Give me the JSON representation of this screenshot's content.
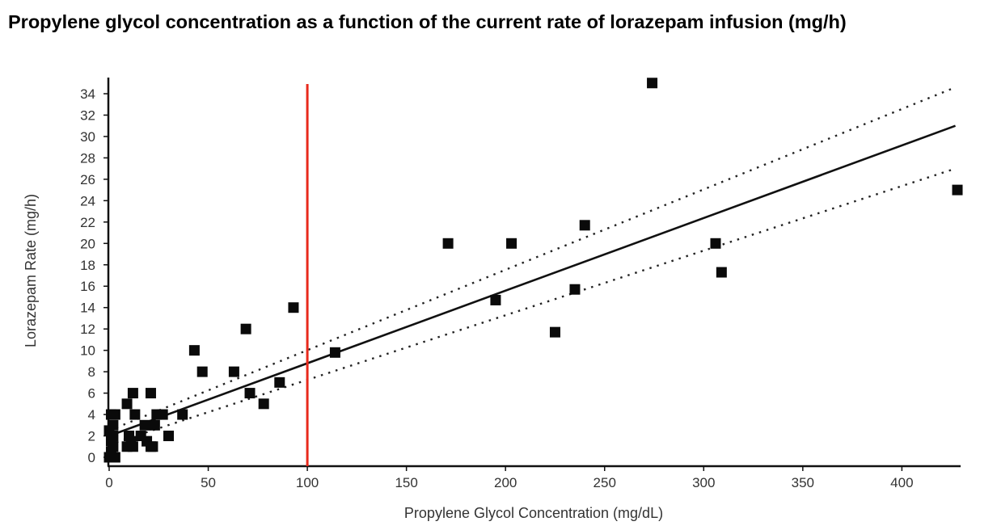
{
  "title": "Propylene glycol concentration as a function of the current rate of lorazepam infusion (mg/h)",
  "chart_data": {
    "type": "scatter",
    "title": "Propylene glycol concentration as a function of the current rate of lorazepam infusion (mg/h)",
    "xlabel": "Propylene Glycol Concentration (mg/dL)",
    "ylabel": "Lorazepam Rate (mg/h)",
    "xlim": [
      0,
      430
    ],
    "ylim": [
      -0.5,
      35.5
    ],
    "x_ticks": [
      "0",
      "50",
      "100",
      "150",
      "200",
      "250",
      "300",
      "350",
      "400"
    ],
    "y_ticks": [
      "0",
      "2",
      "4",
      "6",
      "8",
      "10",
      "12",
      "14",
      "16",
      "18",
      "20",
      "22",
      "24",
      "26",
      "28",
      "30",
      "32",
      "34"
    ],
    "grid": false,
    "legend": "none",
    "points": [
      {
        "x": 0,
        "y": 0
      },
      {
        "x": 1,
        "y": 0.5
      },
      {
        "x": 2,
        "y": 1
      },
      {
        "x": 1,
        "y": 1.5
      },
      {
        "x": 2,
        "y": 2
      },
      {
        "x": 0,
        "y": 2.5
      },
      {
        "x": 3,
        "y": 0
      },
      {
        "x": 1,
        "y": 4
      },
      {
        "x": 3,
        "y": 4
      },
      {
        "x": 2,
        "y": 3
      },
      {
        "x": 9,
        "y": 1
      },
      {
        "x": 10,
        "y": 2
      },
      {
        "x": 11,
        "y": 1.5
      },
      {
        "x": 12,
        "y": 1
      },
      {
        "x": 9,
        "y": 5
      },
      {
        "x": 12,
        "y": 6
      },
      {
        "x": 13,
        "y": 4
      },
      {
        "x": 16,
        "y": 2
      },
      {
        "x": 18,
        "y": 3
      },
      {
        "x": 19,
        "y": 1.5
      },
      {
        "x": 21,
        "y": 1
      },
      {
        "x": 22,
        "y": 1
      },
      {
        "x": 23,
        "y": 3
      },
      {
        "x": 21,
        "y": 6
      },
      {
        "x": 24,
        "y": 4
      },
      {
        "x": 27,
        "y": 4
      },
      {
        "x": 30,
        "y": 2
      },
      {
        "x": 37,
        "y": 4
      },
      {
        "x": 43,
        "y": 10
      },
      {
        "x": 47,
        "y": 8
      },
      {
        "x": 63,
        "y": 8
      },
      {
        "x": 69,
        "y": 12
      },
      {
        "x": 71,
        "y": 6
      },
      {
        "x": 78,
        "y": 5
      },
      {
        "x": 86,
        "y": 7
      },
      {
        "x": 93,
        "y": 14
      },
      {
        "x": 114,
        "y": 9.8
      },
      {
        "x": 171,
        "y": 20
      },
      {
        "x": 195,
        "y": 14.7
      },
      {
        "x": 203,
        "y": 20
      },
      {
        "x": 225,
        "y": 11.7
      },
      {
        "x": 235,
        "y": 15.7
      },
      {
        "x": 240,
        "y": 21.7
      },
      {
        "x": 274,
        "y": 35
      },
      {
        "x": 306,
        "y": 20
      },
      {
        "x": 309,
        "y": 17.3
      },
      {
        "x": 428,
        "y": 25
      }
    ],
    "regression_line": {
      "x": [
        0,
        427
      ],
      "y": [
        2.0,
        31.0
      ]
    },
    "confidence_upper": {
      "x": [
        0,
        427
      ],
      "y": [
        2.5,
        34.6
      ]
    },
    "confidence_lower": {
      "x": [
        0,
        427
      ],
      "y": [
        1.2,
        27.0
      ]
    },
    "reference_line": {
      "x": 100,
      "color": "#e8291c"
    }
  }
}
